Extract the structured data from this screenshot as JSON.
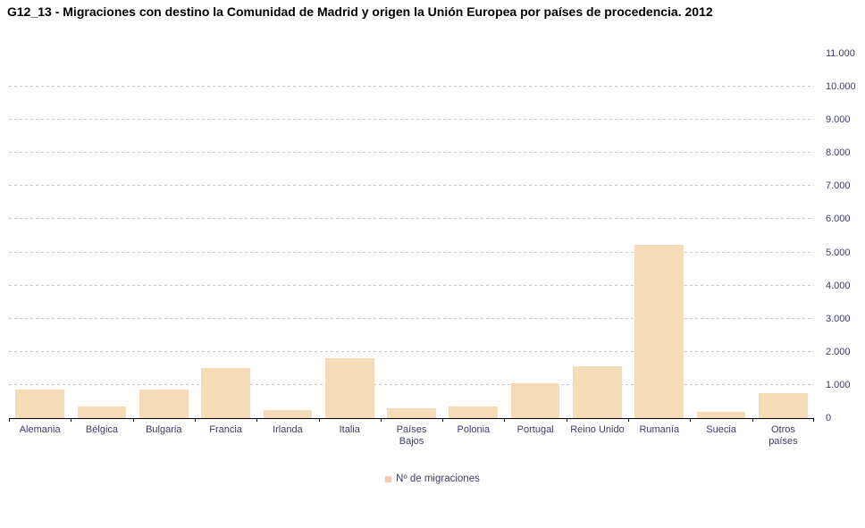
{
  "title": "G12_13 - Migraciones con destino la Comunidad de Madrid y origen la Unión Europea por países de procedencia. 2012",
  "legend": {
    "label": "Nº de migraciones",
    "swatch_color": "#F0CBA6"
  },
  "colors": {
    "bar_fill": "#F6DBB8",
    "gridline": "#c3c5cf",
    "axis_line": "#000000",
    "tick_label": "#3D3D6B",
    "title_text": "#000000",
    "background": "#ffffff"
  },
  "chart_data": {
    "type": "bar",
    "title": "G12_13 - Migraciones con destino la Comunidad de Madrid y origen la Unión Europea por países de procedencia. 2012",
    "categories": [
      "Alemania",
      "Bélgica",
      "Bulgaria",
      "Francia",
      "Irlanda",
      "Italia",
      "Países Bajos",
      "Polonia",
      "Portugal",
      "Reino Unido",
      "Rumanía",
      "Suecia",
      "Otros países"
    ],
    "series": [
      {
        "name": "Nº de migraciones",
        "values": [
          870,
          350,
          860,
          1505,
          235,
          1800,
          295,
          340,
          1060,
          1560,
          5230,
          190,
          745
        ]
      }
    ],
    "xlabel": "",
    "ylabel": "",
    "ylim": [
      0,
      11000
    ],
    "ytick_interval": 1000,
    "ytick_labels": [
      "0",
      "1.000",
      "2.000",
      "3.000",
      "4.000",
      "5.000",
      "6.000",
      "7.000",
      "8.000",
      "9.000",
      "10.000",
      "11.000"
    ],
    "grid": true,
    "gridline_style": "dashed",
    "legend_position": "bottom",
    "bar_color": "#F6DBB8"
  }
}
